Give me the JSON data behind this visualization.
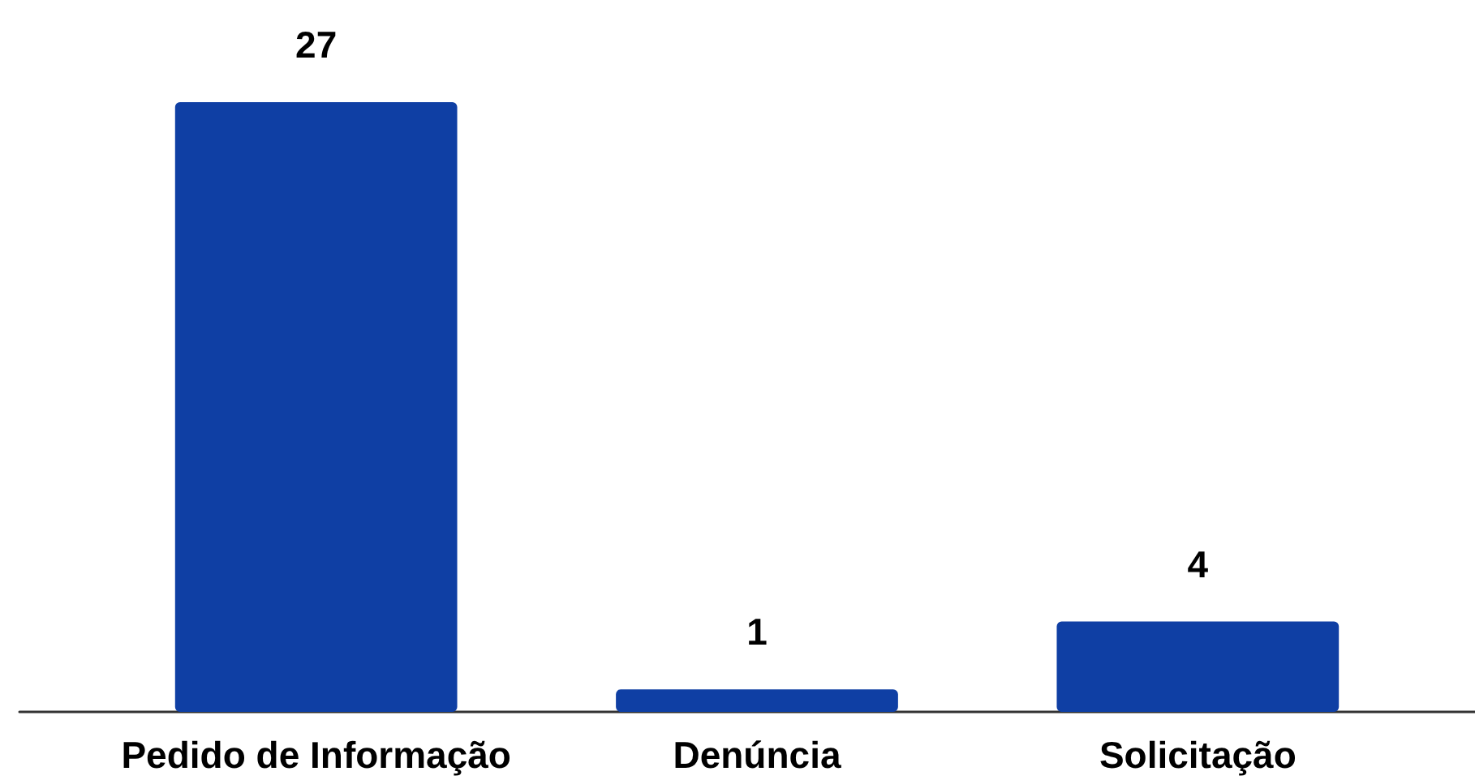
{
  "chart_data": {
    "type": "bar",
    "categories": [
      "Pedido de Informação",
      "Denúncia",
      "Solicitação"
    ],
    "values": [
      27,
      1,
      4
    ],
    "color": "#0f3fa4",
    "data_labels": true
  }
}
